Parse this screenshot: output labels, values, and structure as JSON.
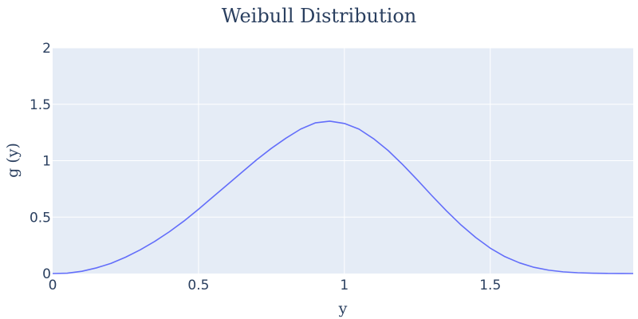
{
  "chart_data": {
    "type": "line",
    "title": "Weibull Distribution",
    "xlabel": "y",
    "ylabel": "g (y)",
    "xlim": [
      0,
      1.99
    ],
    "ylim": [
      0,
      2
    ],
    "x_ticks": [
      0,
      0.5,
      1,
      1.5
    ],
    "x_tick_labels": [
      "0",
      "0.5",
      "1",
      "1.5"
    ],
    "y_ticks": [
      0,
      0.5,
      1,
      1.5,
      2
    ],
    "y_tick_labels": [
      "0",
      "0.5",
      "1",
      "1.5",
      "2"
    ],
    "grid": true,
    "series": [
      {
        "color": "#636efa",
        "x": [
          0,
          0.05,
          0.1,
          0.15,
          0.2,
          0.25,
          0.3,
          0.35,
          0.4,
          0.45,
          0.5,
          0.55,
          0.6,
          0.65,
          0.7,
          0.75,
          0.8,
          0.85,
          0.9,
          0.95,
          1.0,
          1.05,
          1.1,
          1.15,
          1.2,
          1.25,
          1.3,
          1.35,
          1.4,
          1.45,
          1.5,
          1.55,
          1.6,
          1.65,
          1.7,
          1.75,
          1.8,
          1.85,
          1.9,
          1.95,
          1.99
        ],
        "y": [
          0,
          0.003,
          0.02,
          0.05,
          0.09,
          0.145,
          0.21,
          0.285,
          0.37,
          0.465,
          0.57,
          0.68,
          0.79,
          0.9,
          1.01,
          1.11,
          1.2,
          1.28,
          1.335,
          1.35,
          1.33,
          1.28,
          1.195,
          1.09,
          0.965,
          0.83,
          0.69,
          0.555,
          0.43,
          0.32,
          0.225,
          0.15,
          0.095,
          0.055,
          0.03,
          0.015,
          0.007,
          0.003,
          0.001,
          0.0005,
          0
        ]
      }
    ]
  }
}
